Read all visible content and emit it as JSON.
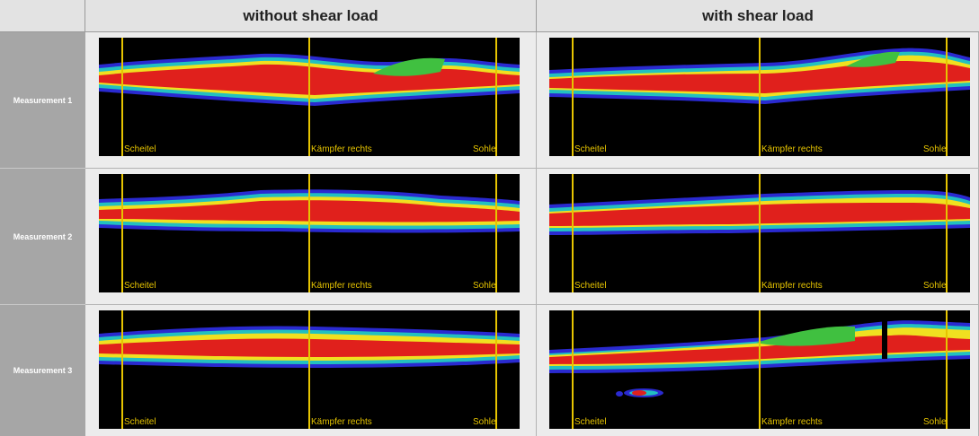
{
  "columns": [
    "without shear load",
    "with shear load"
  ],
  "rows": [
    "Measurement 1",
    "Measurement 2",
    "Measurement 3"
  ],
  "marker_labels": [
    "Scheitel",
    "Kämpfer rechts",
    "Sohle"
  ],
  "colors": {
    "plot_background": "#000000",
    "marker_line": "#e6c400",
    "heat_high": "#e0201c",
    "heat_mid": "#f0e020",
    "heat_low": "#2020c0"
  }
}
